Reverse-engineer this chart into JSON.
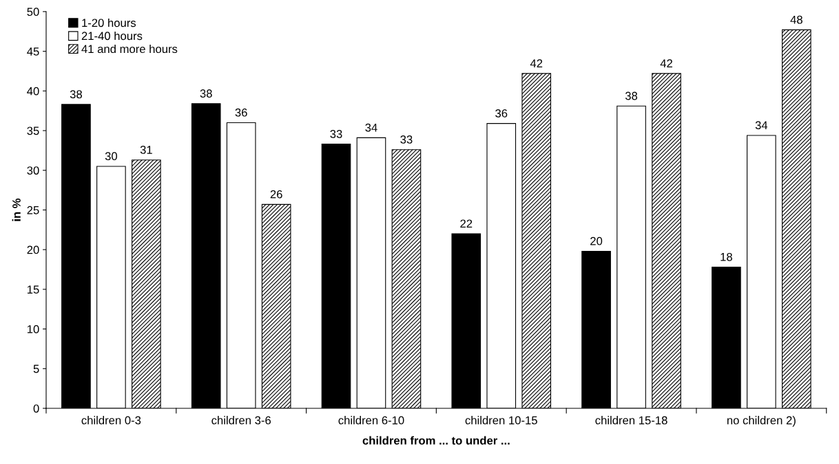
{
  "chart_data": {
    "type": "bar",
    "xlabel": "children from ... to under ...",
    "ylabel": "in %",
    "categories": [
      "children 0-3",
      "children 3-6",
      "children 6-10",
      "children 10-15",
      "children 15-18",
      "no children 2)"
    ],
    "series": [
      {
        "name": "1-20 hours",
        "color": "#000000",
        "values": [
          38.3,
          38.4,
          33.3,
          22.0,
          19.8,
          17.8
        ],
        "value_labels": [
          "38",
          "38",
          "33",
          "22",
          "20",
          "18"
        ]
      },
      {
        "name": "21-40 hours",
        "color": "#ffffff",
        "values": [
          30.5,
          36.0,
          34.1,
          35.9,
          38.1,
          34.4
        ],
        "value_labels": [
          "30",
          "36",
          "34",
          "36",
          "38",
          "34"
        ]
      },
      {
        "name": "41 and more hours",
        "color": "#000000",
        "values": [
          31.3,
          25.7,
          32.6,
          42.2,
          42.2,
          47.7
        ],
        "value_labels": [
          "31",
          "26",
          "33",
          "42",
          "42",
          "48"
        ]
      }
    ],
    "ylim": [
      0,
      50
    ],
    "yticks": [
      0,
      5,
      10,
      15,
      20,
      25,
      30,
      35,
      40,
      45,
      50
    ],
    "grid": false,
    "legend": "top left"
  }
}
